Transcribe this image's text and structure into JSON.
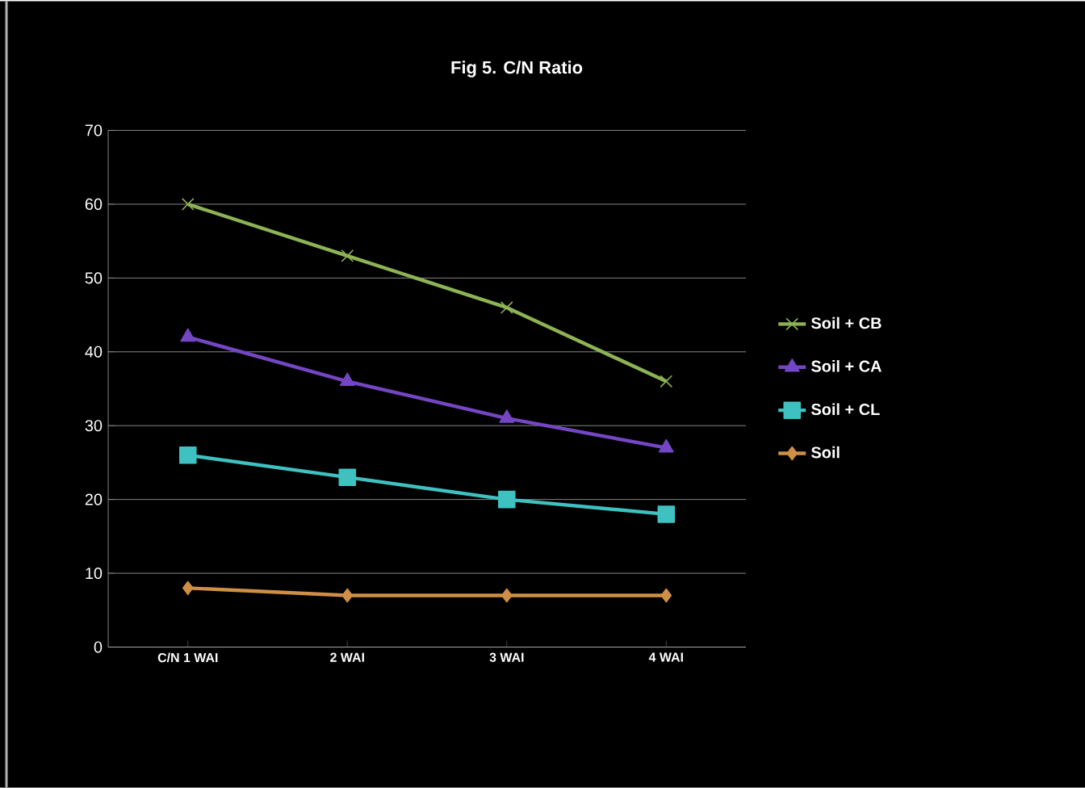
{
  "chart_data": {
    "type": "line",
    "title": "Fig 5.  C/N Ratio",
    "categories": [
      "C/N 1 WAI",
      "2 WAI",
      "3 WAI",
      "4 WAI"
    ],
    "series": [
      {
        "name": "Soil + CB",
        "color": "#8db356",
        "marker": "cross",
        "values": [
          60,
          53,
          46,
          36
        ]
      },
      {
        "name": "Soil + CA",
        "color": "#7446c4",
        "marker": "triangle",
        "values": [
          42,
          36,
          31,
          27
        ]
      },
      {
        "name": "Soil + CL",
        "color": "#3fc1c1",
        "marker": "square",
        "values": [
          26,
          23,
          20,
          18
        ]
      },
      {
        "name": "Soil",
        "color": "#cf8f46",
        "marker": "diamond",
        "values": [
          8,
          7,
          7,
          7
        ]
      }
    ],
    "ylim": [
      0,
      70
    ],
    "yticks": [
      0,
      10,
      20,
      30,
      40,
      50,
      60,
      70
    ],
    "grid": "y",
    "legend": "right"
  }
}
